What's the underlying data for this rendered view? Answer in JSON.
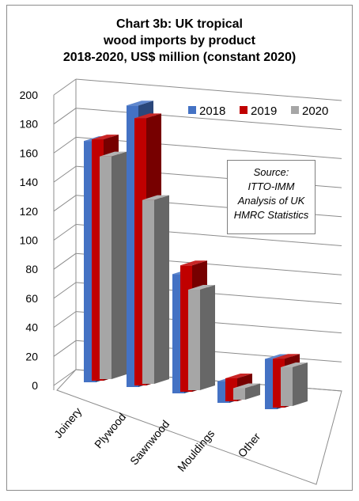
{
  "title_lines": [
    "Chart 3b: UK tropical",
    "wood imports by product",
    "2018-2020, US$ million (constant 2020)"
  ],
  "source_lines": [
    "Source:",
    "ITTO-IMM",
    "Analysis of UK",
    "HMRC Statistics"
  ],
  "chart_data": {
    "type": "bar",
    "title": "Chart 3b: UK tropical wood imports by product 2018-2020, US$ million (constant 2020)",
    "categories": [
      "Joinery",
      "Plywood",
      "Sawnwood",
      "Mouldings",
      "Other"
    ],
    "series": [
      {
        "name": "2018",
        "color": "#4472c4",
        "values": [
          168,
          196,
          83,
          15,
          35
        ]
      },
      {
        "name": "2019",
        "color": "#c00000",
        "values": [
          168,
          186,
          88,
          16,
          34
        ]
      },
      {
        "name": "2020",
        "color": "#a6a6a6",
        "values": [
          155,
          128,
          70,
          8,
          27
        ]
      }
    ],
    "ylim": [
      0,
      200
    ],
    "yticks": [
      0,
      20,
      40,
      60,
      80,
      100,
      120,
      140,
      160,
      180,
      200
    ],
    "grid": true,
    "legend": "top-right",
    "three_d": true
  }
}
